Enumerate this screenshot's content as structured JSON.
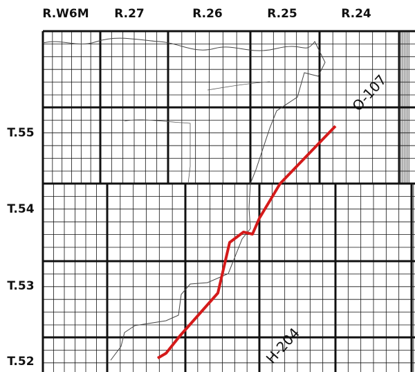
{
  "map": {
    "ranges": [
      "R.W6M",
      "R.27",
      "R.26",
      "R.25",
      "R.24"
    ],
    "townships": [
      "T.55",
      "T.54",
      "T.53",
      "T.52"
    ],
    "roads": [
      "O-107",
      "H-204"
    ]
  }
}
